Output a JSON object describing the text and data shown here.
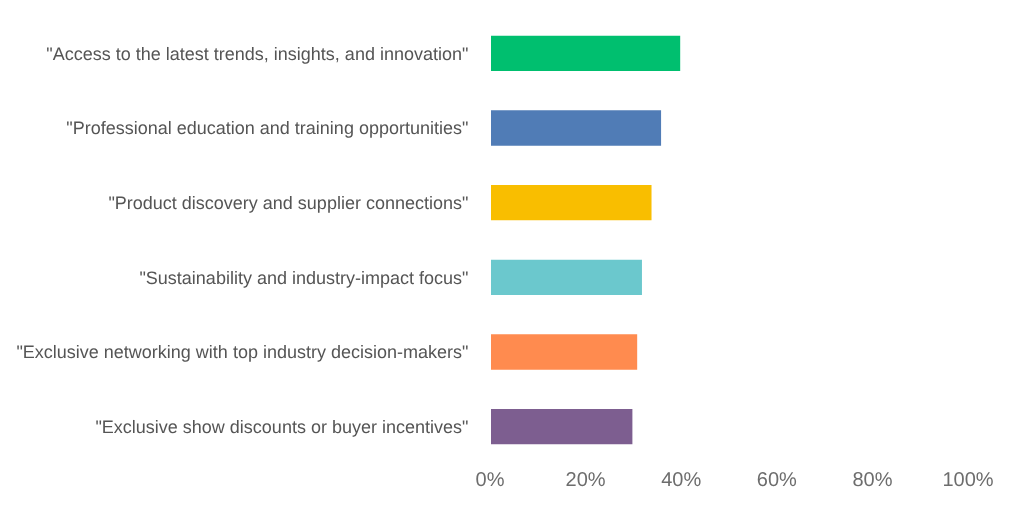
{
  "chart_data": {
    "type": "bar",
    "orientation": "horizontal",
    "categories": [
      "\"Access to the latest trends, insights, and innovation\"",
      "\"Professional education and training opportunities\"",
      "\"Product discovery and supplier connections\"",
      "\"Sustainability and industry-impact focus\"",
      "\"Exclusive networking with top industry decision-makers\"",
      "\"Exclusive show discounts or buyer incentives\""
    ],
    "values": [
      40,
      36,
      34,
      32,
      31,
      30
    ],
    "colors": [
      "#00bf6f",
      "#507cb6",
      "#f9be00",
      "#6bc8cd",
      "#ff8b4f",
      "#7d5e90"
    ],
    "xlim": [
      0,
      100
    ],
    "xticks": [
      {
        "value": 0,
        "label": "0%"
      },
      {
        "value": 20,
        "label": "20%"
      },
      {
        "value": 40,
        "label": "40%"
      },
      {
        "value": 60,
        "label": "60%"
      },
      {
        "value": 80,
        "label": "80%"
      },
      {
        "value": 100,
        "label": "100%"
      }
    ],
    "legend": false
  }
}
